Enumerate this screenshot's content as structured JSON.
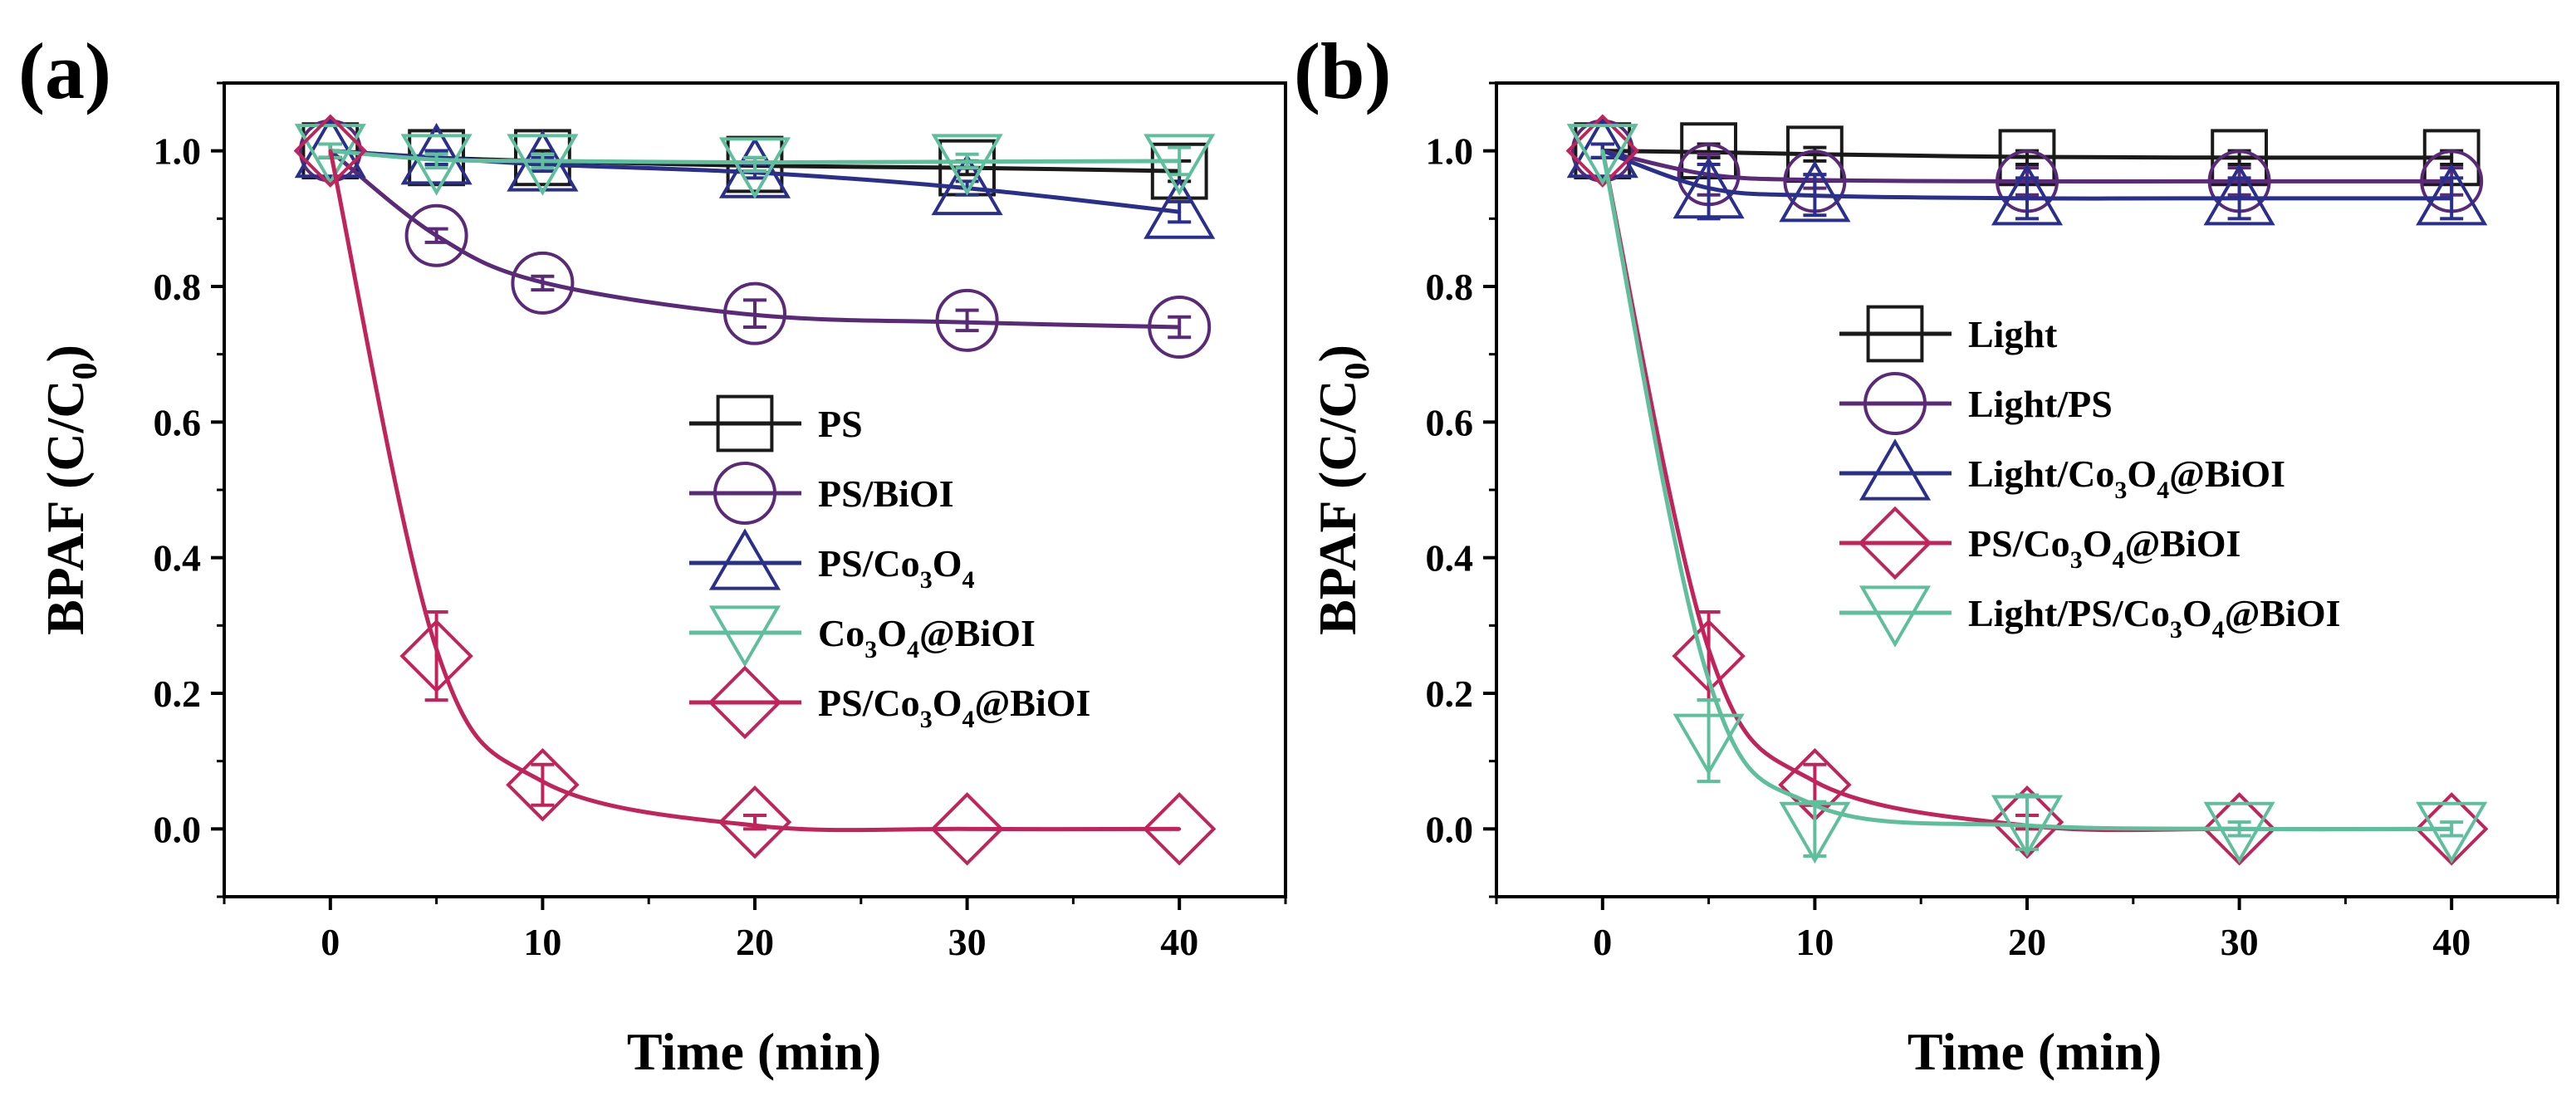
{
  "chart_data": [
    {
      "type": "line",
      "panel_label": "(a)",
      "xlabel": "Time (min)",
      "ylabel": "BPAF  (C/C0)",
      "xlim": [
        -5,
        45
      ],
      "ylim": [
        -0.1,
        1.1
      ],
      "xticks": [
        0,
        10,
        20,
        30,
        40
      ],
      "yticks": [
        0.0,
        0.2,
        0.4,
        0.6,
        0.8,
        1.0
      ],
      "grid": false,
      "legend_position": "center-right",
      "series": [
        {
          "name": "PS",
          "color": "#1a1a1a",
          "marker": "square",
          "x": [
            0,
            5,
            10,
            20,
            30,
            40
          ],
          "y": [
            1.0,
            0.99,
            0.99,
            0.98,
            0.975,
            0.97
          ],
          "err": [
            0.01,
            0.01,
            0.01,
            0.01,
            0.01,
            0.015
          ],
          "fit_y": [
            1.0,
            0.99,
            0.985,
            0.978,
            0.975,
            0.97
          ]
        },
        {
          "name": "PS/BiOI",
          "color": "#5a2a78",
          "marker": "circle",
          "x": [
            0,
            5,
            10,
            20,
            30,
            40
          ],
          "y": [
            1.0,
            0.875,
            0.805,
            0.76,
            0.75,
            0.74
          ],
          "err": [
            0.01,
            0.01,
            0.01,
            0.02,
            0.015,
            0.015
          ],
          "fit_y": [
            1.0,
            0.875,
            0.806,
            0.758,
            0.747,
            0.74
          ]
        },
        {
          "name": "PS/Co3O4",
          "color": "#2b2f8c",
          "marker": "triangle-up",
          "x": [
            0,
            5,
            10,
            20,
            30,
            40
          ],
          "y": [
            1.0,
            0.99,
            0.98,
            0.97,
            0.945,
            0.91
          ],
          "err": [
            0.01,
            0.01,
            0.01,
            0.01,
            0.01,
            0.015
          ],
          "fit_y": [
            1.0,
            0.99,
            0.98,
            0.968,
            0.945,
            0.91
          ]
        },
        {
          "name": "Co3O4@BiOI",
          "color": "#5fbf9c",
          "marker": "triangle-down",
          "x": [
            0,
            5,
            10,
            20,
            30,
            40
          ],
          "y": [
            1.0,
            0.985,
            0.985,
            0.98,
            0.985,
            0.985
          ],
          "err": [
            0.01,
            0.01,
            0.01,
            0.01,
            0.01,
            0.02
          ],
          "fit_y": [
            1.0,
            0.987,
            0.985,
            0.983,
            0.984,
            0.985
          ]
        },
        {
          "name": "PS/Co3O4@BiOI",
          "color": "#c0245a",
          "marker": "diamond",
          "x": [
            0,
            5,
            10,
            20,
            30,
            40
          ],
          "y": [
            1.0,
            0.255,
            0.065,
            0.01,
            0.0,
            0.0
          ],
          "err": [
            0.0,
            0.065,
            0.03,
            0.01,
            0.0,
            0.0
          ],
          "fit_y": [
            1.0,
            0.265,
            0.07,
            0.005,
            0.0,
            0.0
          ]
        }
      ]
    },
    {
      "type": "line",
      "panel_label": "(b)",
      "xlabel": "Time (min)",
      "ylabel": "BPAF  (C/C0)",
      "xlim": [
        -5,
        45
      ],
      "ylim": [
        -0.1,
        1.1
      ],
      "xticks": [
        0,
        10,
        20,
        30,
        40
      ],
      "yticks": [
        0.0,
        0.2,
        0.4,
        0.6,
        0.8,
        1.0
      ],
      "grid": false,
      "legend_position": "center-right",
      "series": [
        {
          "name": "Light",
          "color": "#1a1a1a",
          "marker": "square",
          "x": [
            0,
            5,
            10,
            20,
            30,
            40
          ],
          "y": [
            1.0,
            1.0,
            0.995,
            0.99,
            0.99,
            0.99
          ],
          "err": [
            0.01,
            0.01,
            0.01,
            0.01,
            0.01,
            0.01
          ],
          "fit_y": [
            1.0,
            0.998,
            0.995,
            0.991,
            0.99,
            0.99
          ]
        },
        {
          "name": "Light/PS",
          "color": "#5a2a78",
          "marker": "circle",
          "x": [
            0,
            5,
            10,
            20,
            30,
            40
          ],
          "y": [
            1.0,
            0.965,
            0.955,
            0.955,
            0.955,
            0.955
          ],
          "err": [
            0.01,
            0.03,
            0.01,
            0.02,
            0.02,
            0.02
          ],
          "fit_y": [
            1.0,
            0.965,
            0.957,
            0.955,
            0.955,
            0.955
          ]
        },
        {
          "name": "Light/Co3O4@BiOI",
          "color": "#2b2f8c",
          "marker": "triangle-up",
          "x": [
            0,
            5,
            10,
            20,
            30,
            40
          ],
          "y": [
            1.0,
            0.94,
            0.935,
            0.93,
            0.93,
            0.93
          ],
          "err": [
            0.01,
            0.04,
            0.03,
            0.03,
            0.03,
            0.03
          ],
          "fit_y": [
            1.0,
            0.945,
            0.934,
            0.93,
            0.93,
            0.93
          ]
        },
        {
          "name": "PS/Co3O4@BiOI",
          "color": "#c0245a",
          "marker": "diamond",
          "x": [
            0,
            5,
            10,
            20,
            30,
            40
          ],
          "y": [
            1.0,
            0.255,
            0.065,
            0.01,
            0.0,
            0.0
          ],
          "err": [
            0.0,
            0.065,
            0.03,
            0.01,
            0.0,
            0.0
          ],
          "fit_y": [
            1.0,
            0.265,
            0.07,
            0.005,
            0.0,
            0.0
          ]
        },
        {
          "name": "Light/PS/Co3O4@BiOI",
          "color": "#5fbf9c",
          "marker": "triangle-down",
          "x": [
            0,
            5,
            10,
            20,
            30,
            40
          ],
          "y": [
            1.0,
            0.13,
            0.0,
            0.01,
            0.0,
            0.0
          ],
          "err": [
            0.0,
            0.06,
            0.04,
            0.04,
            0.01,
            0.01
          ],
          "fit_y": [
            1.0,
            0.22,
            0.035,
            0.005,
            0.0,
            0.0
          ]
        }
      ]
    }
  ]
}
